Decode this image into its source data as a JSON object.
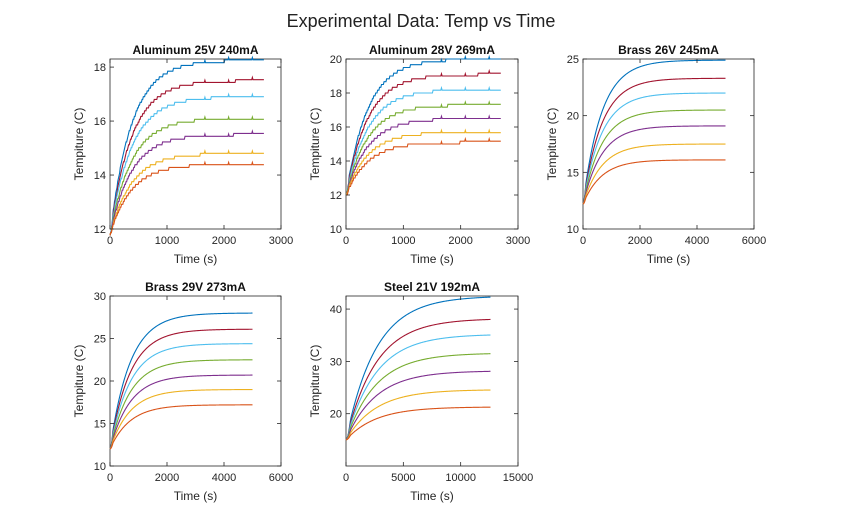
{
  "figure_title": "Experimental Data: Temp vs Time",
  "chart_data": [
    {
      "type": "line",
      "title": "Aluminum 25V 240mA",
      "xlabel": "Time (s)",
      "ylabel": "Tempiture (C)",
      "xlim": [
        0,
        3000
      ],
      "ylim": [
        12,
        18.3
      ],
      "xticks": [
        0,
        1000,
        2000,
        3000
      ],
      "yticks": [
        12,
        14,
        16,
        18
      ],
      "series_colors": [
        "#0072BD",
        "#A2142F",
        "#4DBEEE",
        "#77AC30",
        "#7E2F8E",
        "#EDB120",
        "#D95319"
      ],
      "start_value": 11.8,
      "x_end": 2700,
      "time_constant": 380,
      "final_values": [
        18.25,
        17.5,
        16.9,
        16.1,
        15.5,
        14.8,
        14.4
      ],
      "stepped": true
    },
    {
      "type": "line",
      "title": "Aluminum 28V 269mA",
      "xlabel": "Time (s)",
      "ylabel": "Tempiture (C)",
      "xlim": [
        0,
        3000
      ],
      "ylim": [
        10,
        20
      ],
      "xticks": [
        0,
        1000,
        2000,
        3000
      ],
      "yticks": [
        10,
        12,
        14,
        16,
        18,
        20
      ],
      "series_colors": [
        "#0072BD",
        "#A2142F",
        "#4DBEEE",
        "#77AC30",
        "#7E2F8E",
        "#EDB120",
        "#D95319"
      ],
      "start_value": 12,
      "x_end": 2700,
      "time_constant": 380,
      "final_values": [
        20,
        19.1,
        18.2,
        17.3,
        16.5,
        15.7,
        15.1
      ],
      "stepped": true
    },
    {
      "type": "line",
      "title": "Brass 26V 245mA",
      "xlabel": "Time (s)",
      "ylabel": "Tempiture (C)",
      "xlim": [
        0,
        6000
      ],
      "ylim": [
        10,
        25
      ],
      "xticks": [
        0,
        2000,
        4000,
        6000
      ],
      "yticks": [
        10,
        15,
        20,
        25
      ],
      "series_colors": [
        "#0072BD",
        "#A2142F",
        "#4DBEEE",
        "#77AC30",
        "#7E2F8E",
        "#EDB120",
        "#D95319"
      ],
      "start_value": 12.2,
      "x_end": 5000,
      "time_constant": 650,
      "final_values": [
        24.9,
        23.3,
        22,
        20.5,
        19.1,
        17.5,
        16.1
      ],
      "stepped": false
    },
    {
      "type": "line",
      "title": "Brass 29V 273mA",
      "xlabel": "Time (s)",
      "ylabel": "Tempiture (C)",
      "xlim": [
        0,
        6000
      ],
      "ylim": [
        10,
        30
      ],
      "xticks": [
        0,
        2000,
        4000,
        6000
      ],
      "yticks": [
        10,
        15,
        20,
        25,
        30
      ],
      "series_colors": [
        "#0072BD",
        "#A2142F",
        "#4DBEEE",
        "#77AC30",
        "#7E2F8E",
        "#EDB120",
        "#D95319"
      ],
      "start_value": 12,
      "x_end": 5000,
      "time_constant": 700,
      "final_values": [
        28,
        26.1,
        24.4,
        22.5,
        20.7,
        19,
        17.2
      ],
      "stepped": false
    },
    {
      "type": "line",
      "title": "Steel 21V 192mA",
      "xlabel": "Time (s)",
      "ylabel": "Tempiture (C)",
      "xlim": [
        0,
        15000
      ],
      "ylim": [
        10,
        42.5
      ],
      "xticks": [
        0,
        5000,
        10000,
        15000
      ],
      "yticks": [
        20,
        30,
        40
      ],
      "series_colors": [
        "#0072BD",
        "#A2142F",
        "#4DBEEE",
        "#77AC30",
        "#7E2F8E",
        "#EDB120",
        "#D95319"
      ],
      "start_value": 15,
      "x_end": 12600,
      "time_constant": 2600,
      "final_values": [
        42.5,
        38.2,
        35.2,
        31.6,
        28.2,
        24.6,
        21.3
      ],
      "stepped": false
    }
  ]
}
